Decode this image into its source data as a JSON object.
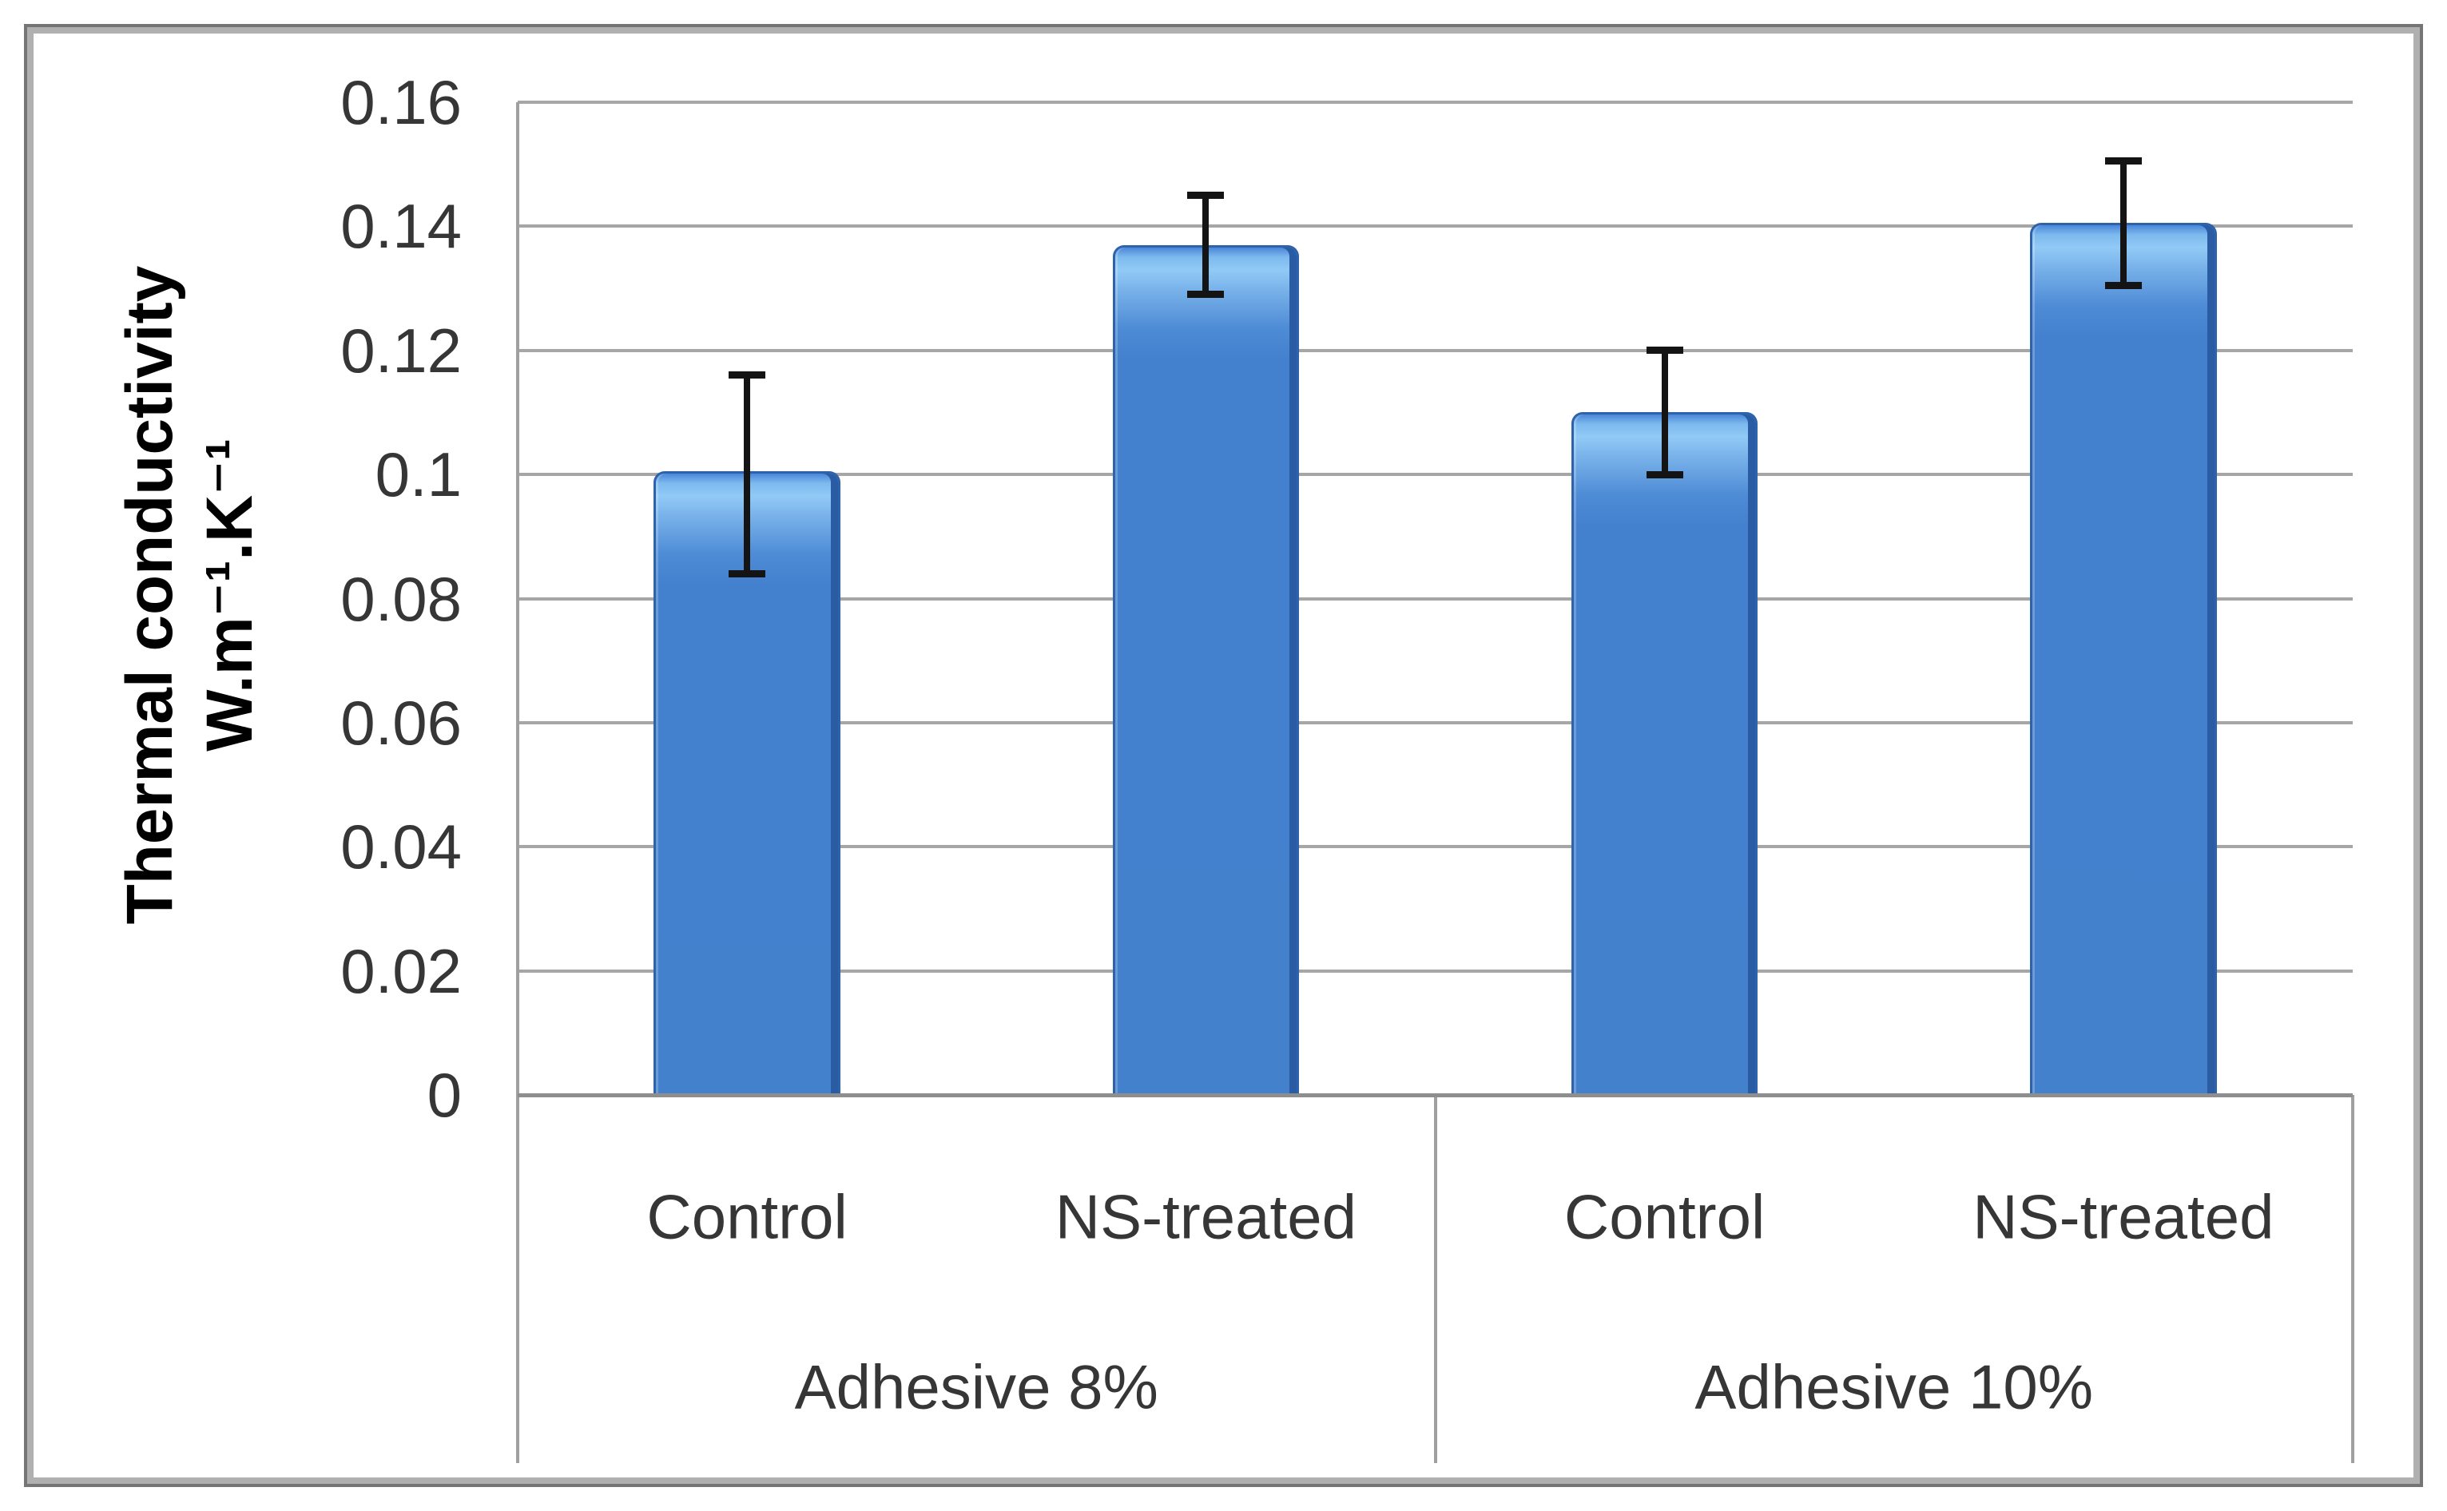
{
  "figure": {
    "background": "#ffffff",
    "frame_outer_color": "#757575",
    "frame_inner_color": "#b0b0b0"
  },
  "chart_data": {
    "type": "bar",
    "title": "",
    "legend": "none",
    "grid": "horizontal",
    "y_axis": {
      "title_line1": "Thermal conductivity",
      "title_line2": "W.m⁻¹.K⁻¹",
      "min": 0,
      "max": 0.16,
      "ticks": [
        0,
        0.02,
        0.04,
        0.06,
        0.08,
        0.1,
        0.12,
        0.14,
        0.16
      ],
      "tick_labels": [
        "0",
        "0.02",
        "0.04",
        "0.06",
        "0.08",
        "0.1",
        "0.12",
        "0.14",
        "0.16"
      ]
    },
    "groups": [
      {
        "label": "Adhesive 8%",
        "bars": [
          {
            "category": "Control",
            "value": 0.1005,
            "error_low": 0.084,
            "error_high": 0.116
          },
          {
            "category": "NS-treated",
            "value": 0.137,
            "error_low": 0.129,
            "error_high": 0.145
          }
        ]
      },
      {
        "label": "Adhesive 10%",
        "bars": [
          {
            "category": "Control",
            "value": 0.11,
            "error_low": 0.1,
            "error_high": 0.12
          },
          {
            "category": "NS-treated",
            "value": 0.1405,
            "error_low": 0.1305,
            "error_high": 0.1505
          }
        ]
      }
    ],
    "colors": {
      "bar_fill": "#4380ce",
      "bar_shine": "#91caf6",
      "bar_edge_dark": "#2a5ca4",
      "bar_outline": "#2e63ac",
      "error_bar": "#141414",
      "gridline": "#a6a6a6",
      "axis_line": "#8e8e8e",
      "text": "#363636",
      "axis_title_text": "#000000"
    }
  }
}
